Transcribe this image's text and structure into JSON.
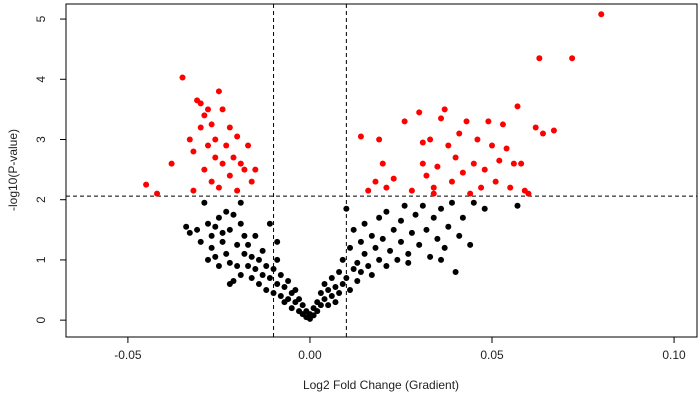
{
  "chart_data": {
    "type": "scatter",
    "x_label": "Log2 Fold Change (Gradient)",
    "y_label": "-log10(P-value)",
    "xlim": [
      -0.067,
      0.1063
    ],
    "ylim": [
      -0.28,
      5.25
    ],
    "xticks": [
      -0.05,
      {
        "value": 0,
        "label": "0.00"
      },
      0.05,
      {
        "value": 0.1,
        "label": "0.10"
      }
    ],
    "yticks": [
      0,
      1,
      2,
      3,
      4,
      5
    ],
    "threshold_lines": {
      "x": [
        -0.01,
        0.01
      ],
      "y": 2.06
    },
    "series": [
      {
        "color": "#ff0000",
        "x": [
          -0.045,
          -0.042,
          -0.038,
          -0.035,
          -0.033,
          -0.032,
          -0.031,
          -0.03,
          -0.03,
          -0.029,
          -0.029,
          -0.028,
          -0.028,
          -0.027,
          -0.027,
          -0.026,
          -0.026,
          -0.025,
          -0.025,
          -0.024,
          -0.024,
          -0.023,
          -0.022,
          -0.022,
          -0.021,
          -0.02,
          -0.02,
          -0.019,
          -0.018,
          -0.017,
          -0.016,
          -0.015,
          -0.032,
          0.014,
          0.016,
          0.018,
          0.019,
          0.02,
          0.021,
          0.023,
          0.026,
          0.028,
          0.03,
          0.031,
          0.032,
          0.033,
          0.034,
          0.035,
          0.036,
          0.037,
          0.038,
          0.039,
          0.04,
          0.041,
          0.042,
          0.043,
          0.044,
          0.045,
          0.046,
          0.047,
          0.048,
          0.049,
          0.05,
          0.051,
          0.052,
          0.053,
          0.054,
          0.055,
          0.056,
          0.057,
          0.058,
          0.059,
          0.062,
          0.063,
          0.064,
          0.067,
          0.072,
          0.08,
          0.06,
          0.031,
          0.034
        ],
        "values": [
          2.25,
          2.1,
          2.6,
          4.03,
          3,
          2.8,
          3.65,
          3.6,
          3.2,
          3.4,
          2.5,
          3.5,
          2.9,
          3.25,
          2.3,
          2.7,
          3,
          3.8,
          2.2,
          3.5,
          2.6,
          2.9,
          3.2,
          2.4,
          2.7,
          3.05,
          2.15,
          2.6,
          2.5,
          2.9,
          2.3,
          2.5,
          2.15,
          3.05,
          2.15,
          2.3,
          3,
          2.6,
          2.2,
          2.35,
          3.3,
          2.15,
          3.45,
          2.6,
          2.4,
          3,
          2.2,
          2.55,
          3.35,
          3.5,
          2.9,
          2.3,
          2.7,
          3.1,
          2.45,
          3.3,
          2.1,
          2.6,
          3,
          2.2,
          2.5,
          3.3,
          2.9,
          2.3,
          2.65,
          3.25,
          2.85,
          2.2,
          2.6,
          3.55,
          2.6,
          2.15,
          3.2,
          4.35,
          3.1,
          3.15,
          4.35,
          5.08,
          2.1,
          2.95,
          2.1
        ]
      },
      {
        "color": "#000000",
        "x": [
          -0.034,
          -0.033,
          -0.031,
          -0.03,
          -0.029,
          -0.028,
          -0.027,
          -0.027,
          -0.026,
          -0.025,
          -0.025,
          -0.024,
          -0.023,
          -0.023,
          -0.022,
          -0.022,
          -0.021,
          -0.021,
          -0.02,
          -0.02,
          -0.019,
          -0.019,
          -0.018,
          -0.018,
          -0.017,
          -0.017,
          -0.016,
          -0.016,
          -0.015,
          -0.015,
          -0.014,
          -0.014,
          -0.013,
          -0.013,
          -0.012,
          -0.012,
          -0.011,
          -0.011,
          -0.01,
          -0.01,
          -0.009,
          -0.009,
          -0.008,
          -0.008,
          -0.007,
          -0.007,
          -0.006,
          -0.006,
          -0.005,
          -0.005,
          -0.004,
          -0.004,
          -0.003,
          -0.003,
          -0.002,
          -0.002,
          -0.001,
          -0.001,
          0,
          0,
          -0.024,
          -0.026,
          -0.028,
          -0.022,
          -0.019,
          -0.009,
          0.001,
          0.001,
          0.002,
          0.002,
          0.003,
          0.003,
          0.004,
          0.004,
          0.005,
          0.005,
          0.006,
          0.006,
          0.007,
          0.007,
          0.008,
          0.008,
          0.009,
          0.009,
          0.01,
          0.01,
          0.011,
          0.011,
          0.012,
          0.012,
          0.013,
          0.013,
          0.014,
          0.014,
          0.015,
          0.015,
          0.016,
          0.017,
          0.017,
          0.018,
          0.019,
          0.019,
          0.02,
          0.021,
          0.021,
          0.022,
          0.023,
          0.024,
          0.025,
          0.025,
          0.026,
          0.027,
          0.028,
          0.029,
          0.03,
          0.031,
          0.032,
          0.033,
          0.034,
          0.035,
          0.036,
          0.037,
          0.038,
          0.039,
          0.04,
          0.041,
          0.042,
          0.044,
          0.045,
          0.048,
          0.057,
          0.036,
          0.027
        ],
        "values": [
          1.55,
          1.45,
          1.5,
          1.3,
          1.95,
          1.6,
          1.2,
          1.4,
          1.05,
          1.7,
          0.9,
          1.3,
          1.8,
          1.1,
          0.95,
          1.5,
          1.75,
          0.65,
          1.25,
          0.9,
          1.6,
          0.75,
          1.1,
          1.4,
          0.9,
          1.25,
          0.7,
          1.05,
          0.85,
          1.4,
          0.6,
          1,
          0.75,
          1.15,
          0.5,
          0.9,
          0.7,
          1.6,
          0.45,
          0.85,
          0.6,
          1,
          0.4,
          0.75,
          0.55,
          0.3,
          0.65,
          0.35,
          0.45,
          0.2,
          0.3,
          0.5,
          0.15,
          0.35,
          0.1,
          0.25,
          0.05,
          0.15,
          0.02,
          0.1,
          1.45,
          1.55,
          1,
          0.6,
          1.95,
          1.3,
          0.08,
          0.2,
          0.15,
          0.3,
          0.25,
          0.45,
          0.35,
          0.6,
          0.5,
          0.25,
          0.4,
          0.7,
          0.55,
          0.3,
          0.45,
          0.8,
          0.6,
          1,
          0.7,
          1.85,
          0.5,
          1.2,
          0.85,
          1.5,
          0.95,
          0.65,
          1.3,
          0.8,
          1.1,
          1.6,
          0.9,
          1.4,
          0.75,
          1.2,
          1.7,
          1,
          1.35,
          0.9,
          1.8,
          1.15,
          1.5,
          1,
          1.65,
          1.3,
          1.9,
          1.1,
          1.45,
          1.75,
          1.25,
          1.9,
          1.5,
          1.05,
          1.7,
          1.35,
          1.85,
          1.2,
          1.55,
          1.95,
          0.8,
          1.4,
          1.7,
          1.25,
          1.95,
          1.85,
          1.9,
          1,
          0.95
        ]
      }
    ]
  }
}
